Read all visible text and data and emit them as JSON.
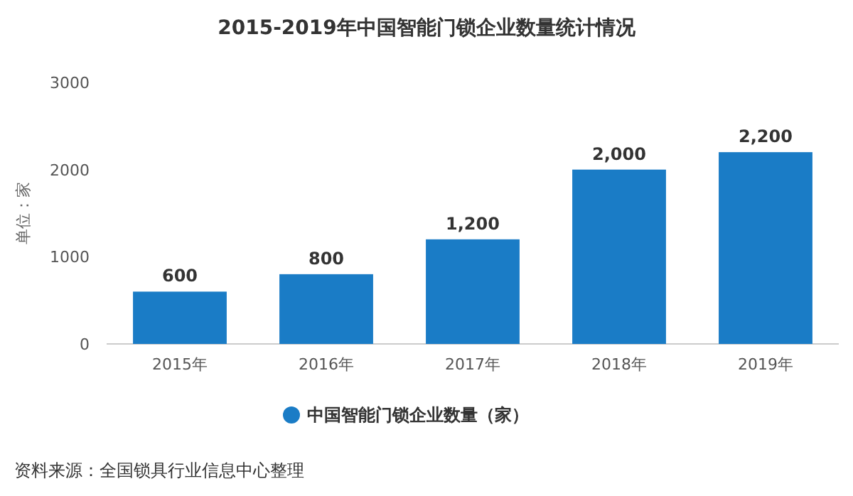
{
  "chart_data": {
    "type": "bar",
    "title": "2015-2019年中国智能门锁企业数量统计情况",
    "ylabel": "单位：家",
    "categories": [
      "2015年",
      "2016年",
      "2017年",
      "2018年",
      "2019年"
    ],
    "series": [
      {
        "name": "中国智能门锁企业数量（家）",
        "color": "#1a7cc6",
        "values": [
          600,
          800,
          1200,
          2000,
          2200
        ]
      }
    ],
    "value_labels": [
      "600",
      "800",
      "1,200",
      "2,000",
      "2,200"
    ],
    "ylim": [
      0,
      3000
    ],
    "yticks": [
      0,
      1000,
      2000,
      3000
    ],
    "grid": false,
    "legend": "bottom",
    "annotations": [
      "资料来源：全国锁具行业信息中心整理"
    ]
  }
}
